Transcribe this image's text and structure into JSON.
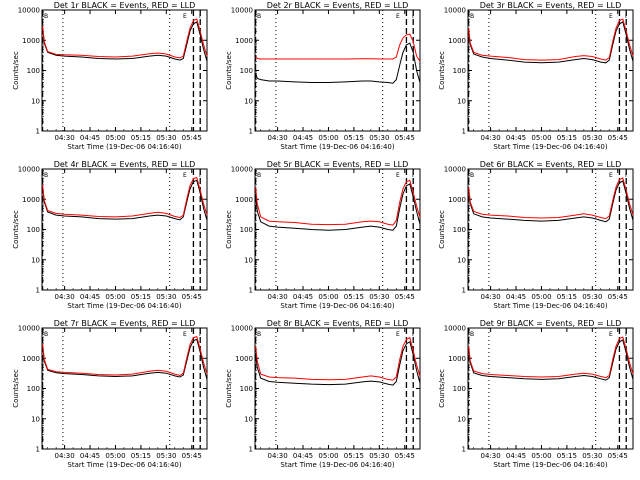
{
  "figure": {
    "panels": [
      {
        "title": "Det 1r BLACK = Events, RED = LLD",
        "xlabel": "Start Time (19-Dec-06 04:16:40)",
        "ylabel": "Counts/sec",
        "marker_left": "B",
        "marker_mid": "E",
        "marker_right": "I"
      },
      {
        "title": "Det 2r BLACK = Events, RED = LLD",
        "xlabel": "Start Time (19-Dec-06 04:16:40)",
        "ylabel": "Counts/sec",
        "marker_left": "B",
        "marker_mid": "E",
        "marker_right": "I"
      },
      {
        "title": "Det 3r BLACK = Events, RED = LLD",
        "xlabel": "Start Time (19-Dec-06 04:16:40)",
        "ylabel": "Counts/sec",
        "marker_left": "B",
        "marker_mid": "E",
        "marker_right": "I"
      },
      {
        "title": "Det 4r BLACK = Events, RED = LLD",
        "xlabel": "Start Time (19-Dec-06 04:16:40)",
        "ylabel": "Counts/sec",
        "marker_left": "B",
        "marker_mid": "E",
        "marker_right": "I"
      },
      {
        "title": "Det 5r BLACK = Events, RED = LLD",
        "xlabel": "Start Time (19-Dec-06 04:16:40)",
        "ylabel": "Counts/sec",
        "marker_left": "B",
        "marker_mid": "E",
        "marker_right": "I"
      },
      {
        "title": "Det 6r BLACK = Events, RED = LLD",
        "xlabel": "Start Time (19-Dec-06 04:16:40)",
        "ylabel": "Counts/sec",
        "marker_left": "B",
        "marker_mid": "E",
        "marker_right": "I"
      },
      {
        "title": "Det 7r BLACK = Events, RED = LLD",
        "xlabel": "Start Time (19-Dec-06 04:16:40)",
        "ylabel": "Counts/sec",
        "marker_left": "B",
        "marker_mid": "E",
        "marker_right": "I"
      },
      {
        "title": "Det 8r BLACK = Events, RED = LLD",
        "xlabel": "Start Time (19-Dec-06 04:16:40)",
        "ylabel": "Counts/sec",
        "marker_left": "B",
        "marker_mid": "E",
        "marker_right": "I"
      },
      {
        "title": "Det 9r BLACK = Events, RED = LLD",
        "xlabel": "Start Time (19-Dec-06 04:16:40)",
        "ylabel": "Counts/sec",
        "marker_left": "B",
        "marker_mid": "E",
        "marker_right": "I"
      }
    ]
  },
  "chart_data": {
    "type": "line",
    "layout": "3x3 grid",
    "yscale": "log",
    "ylim": [
      1,
      10000
    ],
    "xlim": [
      "04:16:40",
      "05:54:00"
    ],
    "x_ticks": [
      "04:30",
      "04:45",
      "05:00",
      "05:15",
      "05:30",
      "05:45"
    ],
    "y_ticks": [
      "1",
      "10",
      "100",
      "1000",
      "10000"
    ],
    "colors": {
      "events": "#000000",
      "lld": "#ff0000"
    },
    "vertical_markers": {
      "dotted": [
        "04:29",
        "05:32"
      ],
      "dashed": [
        "04:17",
        "05:46",
        "05:50"
      ]
    },
    "panels": [
      {
        "title": "Det 1r BLACK = Events, RED = LLD",
        "x": [
          "04:17",
          "04:18",
          "04:20",
          "04:25",
          "04:30",
          "04:40",
          "04:50",
          "05:00",
          "05:10",
          "05:20",
          "05:25",
          "05:30",
          "05:35",
          "05:38",
          "05:40",
          "05:42",
          "05:44",
          "05:46",
          "05:48",
          "05:50",
          "05:52",
          "05:54"
        ],
        "series": [
          {
            "name": "Events",
            "color": "#000000",
            "values": [
              2500,
              800,
              400,
              320,
              300,
              280,
              250,
              240,
              250,
              300,
              320,
              300,
              240,
              220,
              250,
              700,
              2000,
              3500,
              4000,
              1500,
              500,
              200
            ]
          },
          {
            "name": "LLD",
            "color": "#ff0000",
            "values": [
              3000,
              900,
              420,
              340,
              330,
              320,
              290,
              280,
              300,
              360,
              380,
              350,
              280,
              260,
              300,
              900,
              2500,
              4500,
              5000,
              2000,
              700,
              300
            ]
          }
        ]
      },
      {
        "title": "Det 2r BLACK = Events, RED = LLD",
        "x": [
          "04:17",
          "04:18",
          "04:20",
          "04:25",
          "04:30",
          "04:40",
          "04:50",
          "05:00",
          "05:10",
          "05:20",
          "05:25",
          "05:30",
          "05:35",
          "05:38",
          "05:40",
          "05:42",
          "05:44",
          "05:46",
          "05:48",
          "05:50",
          "05:52",
          "05:54"
        ],
        "series": [
          {
            "name": "Events",
            "color": "#000000",
            "values": [
              80,
              55,
              50,
              45,
              45,
              42,
              40,
              40,
              42,
              45,
              45,
              42,
              40,
              38,
              50,
              150,
              400,
              700,
              800,
              400,
              100,
              40
            ]
          },
          {
            "name": "LLD",
            "color": "#ff0000",
            "values": [
              280,
              250,
              240,
              240,
              240,
              240,
              240,
              240,
              240,
              245,
              245,
              240,
              240,
              240,
              280,
              700,
              1200,
              1500,
              1600,
              900,
              300,
              200
            ]
          }
        ]
      },
      {
        "title": "Det 3r BLACK = Events, RED = LLD",
        "x": [
          "04:17",
          "04:18",
          "04:20",
          "04:25",
          "04:30",
          "04:40",
          "04:50",
          "05:00",
          "05:10",
          "05:20",
          "05:25",
          "05:30",
          "05:35",
          "05:38",
          "05:40",
          "05:42",
          "05:44",
          "05:46",
          "05:48",
          "05:50",
          "05:52",
          "05:54"
        ],
        "series": [
          {
            "name": "Events",
            "color": "#000000",
            "values": [
              2000,
              700,
              350,
              280,
              250,
              220,
              190,
              180,
              190,
              230,
              250,
              230,
              190,
              180,
              220,
              700,
              2000,
              3500,
              4000,
              1500,
              500,
              200
            ]
          },
          {
            "name": "LLD",
            "color": "#ff0000",
            "values": [
              2500,
              800,
              400,
              320,
              300,
              270,
              230,
              220,
              230,
              290,
              310,
              290,
              240,
              220,
              270,
              900,
              2500,
              4500,
              5000,
              2000,
              700,
              300
            ]
          }
        ]
      },
      {
        "title": "Det 4r BLACK = Events, RED = LLD",
        "x": [
          "04:17",
          "04:18",
          "04:20",
          "04:25",
          "04:30",
          "04:40",
          "04:50",
          "05:00",
          "05:10",
          "05:20",
          "05:25",
          "05:30",
          "05:35",
          "05:38",
          "05:40",
          "05:42",
          "05:44",
          "05:46",
          "05:48",
          "05:50",
          "05:52",
          "05:54"
        ],
        "series": [
          {
            "name": "Events",
            "color": "#000000",
            "values": [
              2500,
              800,
              380,
              300,
              280,
              260,
              230,
              220,
              230,
              280,
              300,
              280,
              230,
              210,
              260,
              800,
              2200,
              3800,
              4200,
              1600,
              500,
              200
            ]
          },
          {
            "name": "LLD",
            "color": "#ff0000",
            "values": [
              3000,
              900,
              420,
              340,
              320,
              300,
              270,
              260,
              280,
              340,
              370,
              340,
              270,
              250,
              300,
              1000,
              2800,
              4800,
              5200,
              2000,
              700,
              300
            ]
          }
        ]
      },
      {
        "title": "Det 5r BLACK = Events, RED = LLD",
        "x": [
          "04:17",
          "04:18",
          "04:20",
          "04:25",
          "04:30",
          "04:40",
          "04:50",
          "05:00",
          "05:10",
          "05:20",
          "05:25",
          "05:30",
          "05:35",
          "05:38",
          "05:40",
          "05:42",
          "05:44",
          "05:46",
          "05:48",
          "05:50",
          "05:52",
          "05:54"
        ],
        "series": [
          {
            "name": "Events",
            "color": "#000000",
            "values": [
              1500,
              400,
              180,
              130,
              120,
              110,
              100,
              95,
              100,
              120,
              130,
              120,
              100,
              95,
              130,
              500,
              1500,
              2800,
              3200,
              1200,
              400,
              150
            ]
          },
          {
            "name": "LLD",
            "color": "#ff0000",
            "values": [
              2500,
              700,
              260,
              190,
              180,
              170,
              150,
              145,
              150,
              180,
              190,
              180,
              150,
              140,
              200,
              800,
              2200,
              3800,
              4200,
              1700,
              600,
              250
            ]
          }
        ]
      },
      {
        "title": "Det 6r BLACK = Events, RED = LLD",
        "x": [
          "04:17",
          "04:18",
          "04:20",
          "04:25",
          "04:30",
          "04:40",
          "04:50",
          "05:00",
          "05:10",
          "05:20",
          "05:25",
          "05:30",
          "05:35",
          "05:38",
          "05:40",
          "05:42",
          "05:44",
          "05:46",
          "05:48",
          "05:50",
          "05:52",
          "05:54"
        ],
        "series": [
          {
            "name": "Events",
            "color": "#000000",
            "values": [
              2000,
              700,
              330,
              260,
              240,
              220,
              200,
              190,
              200,
              240,
              260,
              240,
              200,
              180,
              220,
              700,
              2000,
              3500,
              4000,
              1500,
              500,
              200
            ]
          },
          {
            "name": "LLD",
            "color": "#ff0000",
            "values": [
              2500,
              800,
              400,
              320,
              300,
              280,
              250,
              240,
              250,
              300,
              330,
              300,
              250,
              230,
              280,
              900,
              2500,
              4500,
              5000,
              2000,
              700,
              300
            ]
          }
        ]
      },
      {
        "title": "Det 7r BLACK = Events, RED = LLD",
        "x": [
          "04:17",
          "04:18",
          "04:20",
          "04:25",
          "04:30",
          "04:40",
          "04:50",
          "05:00",
          "05:10",
          "05:20",
          "05:25",
          "05:30",
          "05:35",
          "05:38",
          "05:40",
          "05:42",
          "05:44",
          "05:46",
          "05:48",
          "05:50",
          "05:52",
          "05:54"
        ],
        "series": [
          {
            "name": "Events",
            "color": "#000000",
            "values": [
              2500,
              800,
              400,
              330,
              310,
              290,
              260,
              250,
              260,
              320,
              340,
              320,
              260,
              240,
              280,
              800,
              2200,
              3800,
              4200,
              1600,
              500,
              200
            ]
          },
          {
            "name": "LLD",
            "color": "#ff0000",
            "values": [
              3000,
              900,
              430,
              360,
              340,
              320,
              290,
              280,
              300,
              370,
              400,
              370,
              300,
              270,
              320,
              1000,
              2800,
              4800,
              5200,
              2000,
              700,
              300
            ]
          }
        ]
      },
      {
        "title": "Det 8r BLACK = Events, RED = LLD",
        "x": [
          "04:17",
          "04:18",
          "04:20",
          "04:25",
          "04:30",
          "04:40",
          "04:50",
          "05:00",
          "05:10",
          "05:20",
          "05:25",
          "05:30",
          "05:35",
          "05:38",
          "05:40",
          "05:42",
          "05:44",
          "05:46",
          "05:48",
          "05:50",
          "05:52",
          "05:54"
        ],
        "series": [
          {
            "name": "Events",
            "color": "#000000",
            "values": [
              1500,
              500,
              220,
              170,
              160,
              150,
              140,
              135,
              140,
              165,
              175,
              165,
              140,
              130,
              170,
              600,
              1800,
              3000,
              3500,
              1300,
              400,
              150
            ]
          },
          {
            "name": "LLD",
            "color": "#ff0000",
            "values": [
              2500,
              800,
              300,
              240,
              230,
              220,
              200,
              195,
              200,
              240,
              260,
              240,
              200,
              190,
              240,
              900,
              2500,
              4200,
              4800,
              1800,
              600,
              250
            ]
          }
        ]
      },
      {
        "title": "Det 9r BLACK = Events, RED = LLD",
        "x": [
          "04:17",
          "04:18",
          "04:20",
          "04:25",
          "04:30",
          "04:40",
          "04:50",
          "05:00",
          "05:10",
          "05:20",
          "05:25",
          "05:30",
          "05:35",
          "05:38",
          "05:40",
          "05:42",
          "05:44",
          "05:46",
          "05:48",
          "05:50",
          "05:52",
          "05:54"
        ],
        "series": [
          {
            "name": "Events",
            "color": "#000000",
            "values": [
              2000,
              700,
              330,
              270,
              250,
              230,
              210,
              200,
              210,
              250,
              270,
              250,
              210,
              190,
              230,
              700,
              2000,
              3500,
              4000,
              1500,
              500,
              200
            ]
          },
          {
            "name": "LLD",
            "color": "#ff0000",
            "values": [
              2500,
              800,
              380,
              310,
              290,
              270,
              250,
              240,
              250,
              300,
              320,
              300,
              250,
              230,
              270,
              900,
              2500,
              4500,
              5000,
              2000,
              700,
              300
            ]
          }
        ]
      }
    ]
  }
}
